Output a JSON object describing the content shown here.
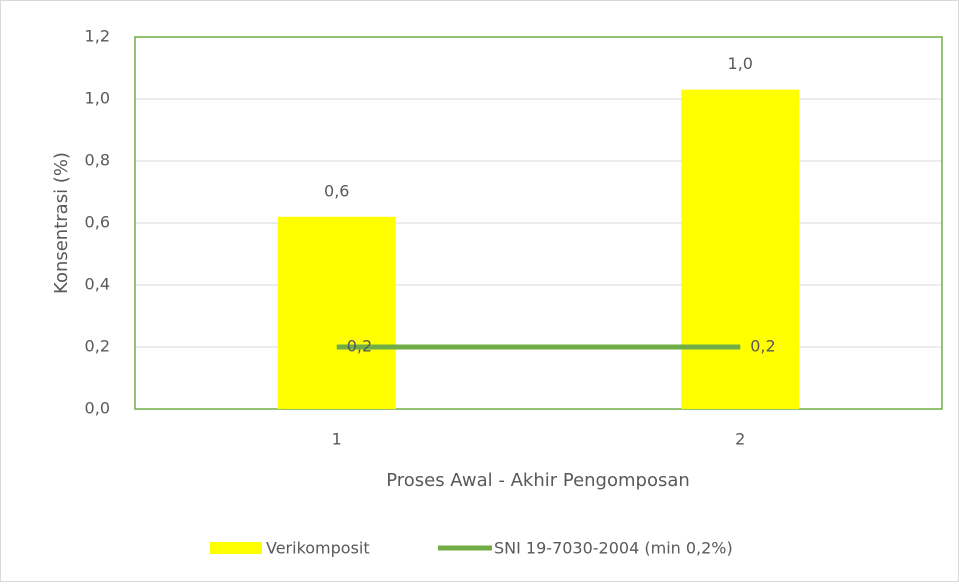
{
  "chart_data": {
    "type": "bar",
    "categories": [
      "1",
      "2"
    ],
    "series": [
      {
        "name": "Verikomposit",
        "type": "bar",
        "color": "#ffff00",
        "values": [
          0.62,
          1.03
        ],
        "value_labels": [
          "0,6",
          "1,0"
        ]
      },
      {
        "name": "SNI 19-7030-2004 (min 0,2%)",
        "type": "line",
        "color": "#70ad47",
        "values": [
          0.2,
          0.2
        ],
        "value_labels": [
          "0,2",
          "0,2"
        ]
      }
    ],
    "y_label": "Konsentrasi (%)",
    "x_label": "Proses Awal - Akhir Pengomposan",
    "ylim": [
      0,
      1.2
    ],
    "yticks": [
      {
        "value": 0,
        "label": "0,0"
      },
      {
        "value": 0.2,
        "label": "0,2"
      },
      {
        "value": 0.4,
        "label": "0,4"
      },
      {
        "value": 0.6,
        "label": "0,6"
      },
      {
        "value": 0.8,
        "label": "0,8"
      },
      {
        "value": 1.0,
        "label": "1,0"
      },
      {
        "value": 1.2,
        "label": "1,2"
      }
    ],
    "grid": true,
    "legend": "bottom"
  }
}
